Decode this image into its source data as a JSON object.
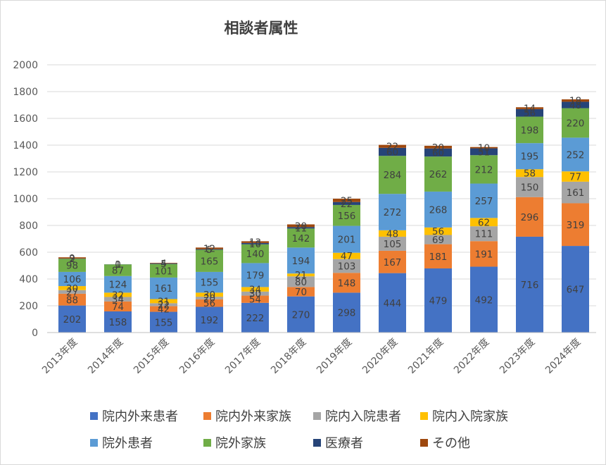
{
  "chart_data": {
    "type": "bar",
    "stacked": true,
    "title": "相談者属性",
    "xlabel": "",
    "ylabel": "",
    "ylim": [
      0,
      2000
    ],
    "yticks": [
      0,
      200,
      400,
      600,
      800,
      1000,
      1200,
      1400,
      1600,
      1800,
      2000
    ],
    "grid": true,
    "legend_position": "bottom",
    "categories": [
      "2013年度",
      "2014年度",
      "2015年度",
      "2016年度",
      "2017年度",
      "2018年度",
      "2019年度",
      "2020年度",
      "2021年度",
      "2022年度",
      "2023年度",
      "2024年度"
    ],
    "series": [
      {
        "name": "院内外来患者",
        "color": "#4472C4",
        "values": [
          202,
          158,
          155,
          192,
          222,
          270,
          298,
          444,
          479,
          492,
          716,
          647
        ]
      },
      {
        "name": "院内外来家族",
        "color": "#ED7D31",
        "values": [
          88,
          74,
          42,
          56,
          54,
          70,
          148,
          167,
          181,
          191,
          296,
          319
        ]
      },
      {
        "name": "院内入院患者",
        "color": "#A5A5A5",
        "values": [
          27,
          34,
          22,
          20,
          30,
          80,
          103,
          105,
          69,
          111,
          150,
          161
        ]
      },
      {
        "name": "院内入院家族",
        "color": "#FFC000",
        "values": [
          30,
          32,
          31,
          30,
          34,
          21,
          47,
          48,
          56,
          62,
          58,
          77
        ]
      },
      {
        "name": "院外患者",
        "color": "#5B9BD5",
        "values": [
          106,
          124,
          161,
          155,
          179,
          194,
          201,
          272,
          268,
          257,
          195,
          252
        ]
      },
      {
        "name": "院外家族",
        "color": "#70AD47",
        "values": [
          98,
          87,
          101,
          165,
          140,
          142,
          156,
          284,
          262,
          212,
          198,
          220
        ]
      },
      {
        "name": "医療者",
        "color": "#264478",
        "values": [
          2,
          1,
          5,
          5,
          10,
          11,
          22,
          60,
          60,
          51,
          56,
          48
        ]
      },
      {
        "name": "その他",
        "color": "#9E480E",
        "values": [
          9,
          0,
          4,
          12,
          13,
          20,
          25,
          22,
          20,
          10,
          14,
          18
        ]
      }
    ]
  }
}
